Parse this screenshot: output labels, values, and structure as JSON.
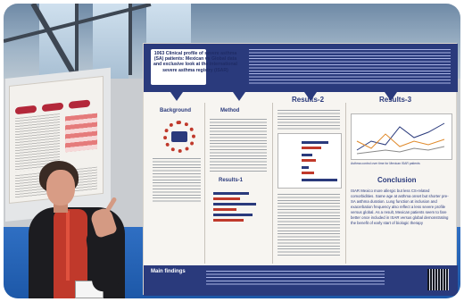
{
  "main_poster": {
    "title": "1063 Clinical profile of severe asthma (SA) patients: Mexican vs Global data and exclusive look at the international severe asthma registry (ISAR)",
    "sections": {
      "background": "Background",
      "method": "Method",
      "results_1": "Results-1",
      "results_2": "Results-2",
      "results_3": "Results-3",
      "conclusion": "Conclusion",
      "main_findings": "Main findings"
    },
    "chart_caption": "Asthma control over time for Mexican ISAR patients",
    "conclusion_text": "ISAR Mexico more allergic but less CS-related comorbidities. Same age at asthma onset but shorter pre-SA asthma duration. Lung function at inclusion and exacerbation frequency also reflect a less severe profile versus global. As a result, Mexican patients seem to fare better once included in ISAR versus global demonstrating the benefit of early start of biologic therapy"
  },
  "colors": {
    "poster_navy": "#2a3a7c",
    "accent_red": "#c0392b",
    "floor_blue": "#2f6fc3"
  }
}
